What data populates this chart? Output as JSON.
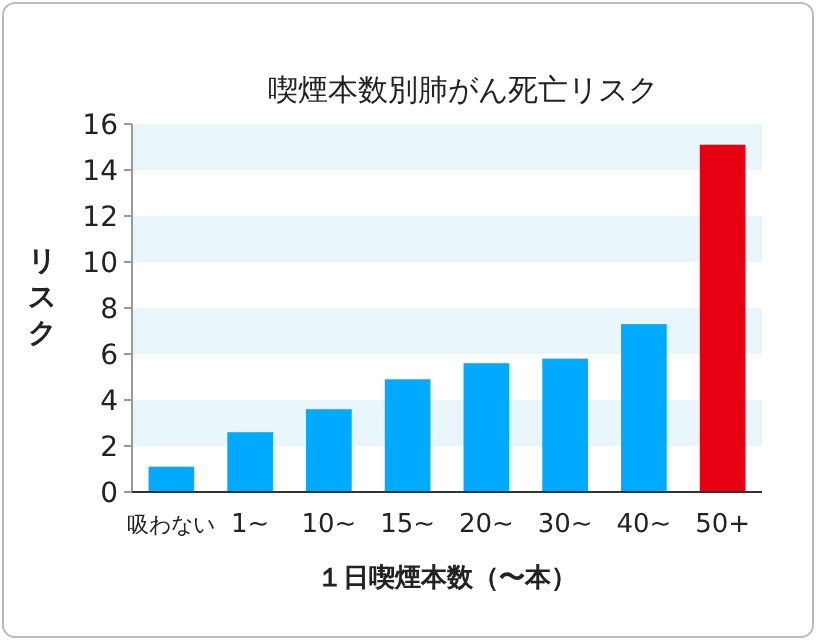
{
  "chart_data": {
    "type": "bar",
    "title": "喫煙本数別肺がん死亡リスク",
    "xlabel": "１日喫煙本数（〜本）",
    "ylabel": "リスク",
    "categories": [
      "吸わない",
      "1~",
      "10~",
      "15~",
      "20~",
      "30~",
      "40~",
      "50+"
    ],
    "values": [
      1.1,
      2.6,
      3.6,
      4.9,
      5.6,
      5.8,
      7.3,
      15.1
    ],
    "colors": [
      "#00aaff",
      "#00aaff",
      "#00aaff",
      "#00aaff",
      "#00aaff",
      "#00aaff",
      "#00aaff",
      "#e60012"
    ],
    "ylim": [
      0,
      16
    ],
    "yticks": [
      0,
      2,
      4,
      6,
      8,
      10,
      12,
      14,
      16
    ],
    "bands": [
      {
        "axis": "y",
        "from": 2,
        "to": 4,
        "color": "#e8f6fc"
      },
      {
        "axis": "y",
        "from": 6,
        "to": 8,
        "color": "#e8f6fc"
      },
      {
        "axis": "y",
        "from": 10,
        "to": 12,
        "color": "#e8f6fc"
      },
      {
        "axis": "y",
        "from": 14,
        "to": 16,
        "color": "#e8f6fc"
      }
    ]
  }
}
